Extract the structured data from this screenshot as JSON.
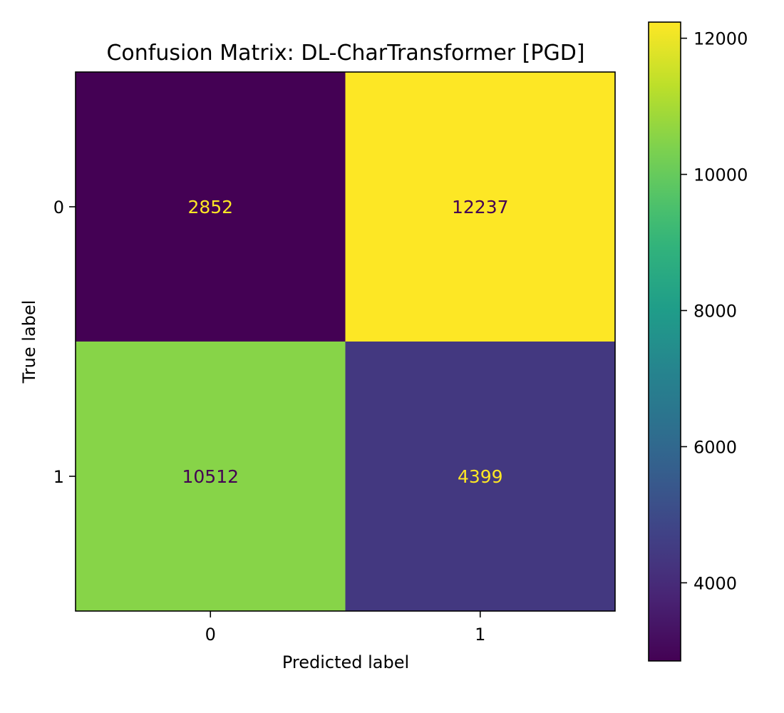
{
  "chart_data": {
    "type": "heatmap",
    "title": "Confusion Matrix: DL-CharTransformer [PGD]",
    "xlabel": "Predicted label",
    "ylabel": "True label",
    "x_categories": [
      "0",
      "1"
    ],
    "y_categories": [
      "0",
      "1"
    ],
    "values": [
      [
        2852,
        12237
      ],
      [
        10512,
        4399
      ]
    ],
    "colormap": "viridis",
    "colorbar": {
      "min": 2852,
      "max": 12237,
      "ticks": [
        4000,
        6000,
        8000,
        10000,
        12000
      ]
    },
    "cell_text_colors": {
      "on_dark": "#fde725",
      "on_light": "#440154"
    }
  }
}
